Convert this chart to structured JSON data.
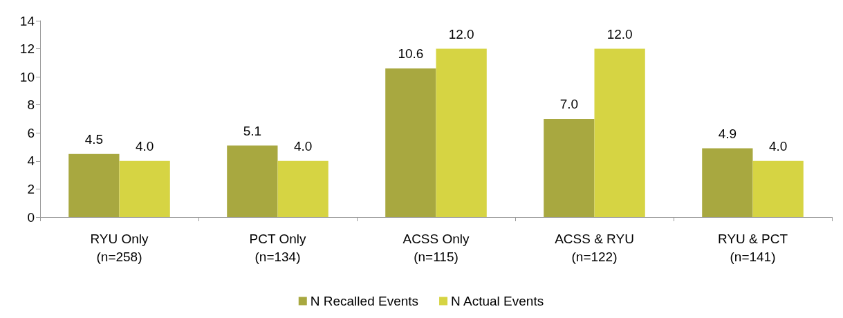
{
  "chart_data": {
    "type": "bar",
    "categories": [
      "RYU Only\n(n=258)",
      "PCT Only\n(n=134)",
      "ACSS Only\n(n=115)",
      "ACSS & RYU\n(n=122)",
      "RYU & PCT\n(n=141)"
    ],
    "series": [
      {
        "name": "N Recalled Events",
        "color": "#a8a840",
        "values": [
          4.5,
          5.1,
          10.6,
          7.0,
          4.9
        ],
        "value_labels": [
          "4.5",
          "5.1",
          "10.6",
          "7.0",
          "4.9"
        ]
      },
      {
        "name": "N Actual Events",
        "color": "#d6d443",
        "values": [
          4.0,
          4.0,
          12.0,
          12.0,
          4.0
        ],
        "value_labels": [
          "4.0",
          "4.0",
          "12.0",
          "12.0",
          "4.0"
        ]
      }
    ],
    "ylim": [
      0,
      14
    ],
    "yticks": [
      0,
      2,
      4,
      6,
      8,
      10,
      12,
      14
    ],
    "grid": false,
    "legend": "bottom"
  }
}
